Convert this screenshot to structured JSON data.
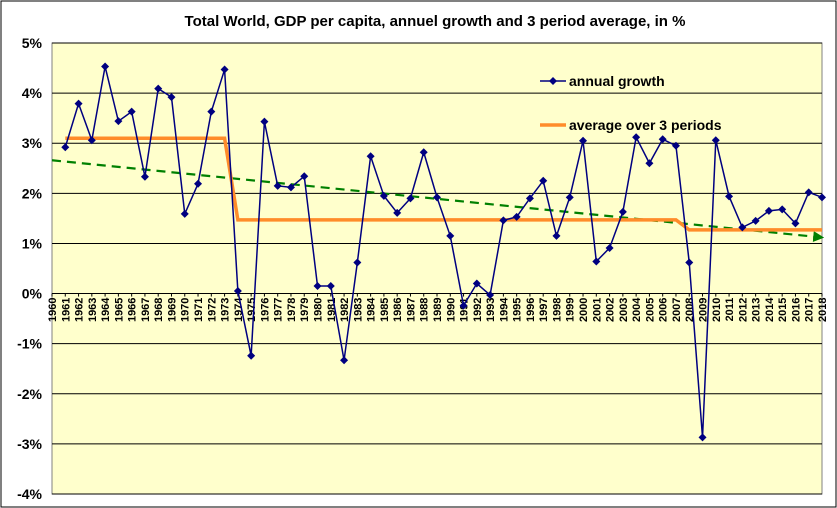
{
  "chart_data": {
    "type": "line",
    "title": "Total World, GDP per capita, annuel growth and 3 period average, in %",
    "xlabel": "",
    "ylabel": "",
    "ylim": [
      -4,
      5
    ],
    "ytick_values": [
      5,
      4,
      3,
      2,
      1,
      0,
      -1,
      -2,
      -3,
      -4
    ],
    "ytick_labels": [
      "5%",
      "4%",
      "3%",
      "2%",
      "1%",
      "0%",
      "-1%",
      "-2%",
      "-3%",
      "-4%"
    ],
    "grid": true,
    "legend_position": "top-right",
    "background_color": "#FFFFCC",
    "categories": [
      "1960",
      "1961",
      "1962",
      "1963",
      "1964",
      "1965",
      "1966",
      "1967",
      "1968",
      "1969",
      "1970",
      "1971",
      "1972",
      "1973",
      "1974",
      "1975",
      "1976",
      "1977",
      "1978",
      "1979",
      "1980",
      "1981",
      "1982",
      "1983",
      "1984",
      "1985",
      "1986",
      "1987",
      "1988",
      "1989",
      "1990",
      "1991",
      "1992",
      "1993",
      "1994",
      "1995",
      "1996",
      "1997",
      "1998",
      "1999",
      "2000",
      "2001",
      "2002",
      "2003",
      "2004",
      "2005",
      "2006",
      "2007",
      "2008",
      "2009",
      "2010",
      "2011",
      "2012",
      "2013",
      "2014",
      "2015",
      "2016",
      "2017",
      "2018"
    ],
    "series": [
      {
        "name": "annual growth",
        "color": "#000080",
        "marker": "diamond",
        "x": [
          "1961",
          "1962",
          "1963",
          "1964",
          "1965",
          "1966",
          "1967",
          "1968",
          "1969",
          "1970",
          "1971",
          "1972",
          "1973",
          "1974",
          "1975",
          "1976",
          "1977",
          "1978",
          "1979",
          "1980",
          "1981",
          "1982",
          "1983",
          "1984",
          "1985",
          "1986",
          "1987",
          "1988",
          "1989",
          "1990",
          "1991",
          "1992",
          "1993",
          "1994",
          "1995",
          "1996",
          "1997",
          "1998",
          "1999",
          "2000",
          "2001",
          "2002",
          "2003",
          "2004",
          "2005",
          "2006",
          "2007",
          "2008",
          "2009",
          "2010",
          "2011",
          "2012",
          "2013",
          "2014",
          "2015",
          "2016",
          "2017",
          "2018"
        ],
        "values": [
          2.92,
          3.79,
          3.06,
          4.53,
          3.44,
          3.63,
          2.33,
          4.09,
          3.92,
          1.59,
          2.19,
          3.63,
          4.47,
          0.05,
          -1.24,
          3.43,
          2.15,
          2.12,
          2.34,
          0.15,
          0.15,
          -1.33,
          0.62,
          2.74,
          1.95,
          1.61,
          1.9,
          2.82,
          1.92,
          1.15,
          -0.24,
          0.2,
          -0.03,
          1.46,
          1.53,
          1.9,
          2.25,
          1.15,
          1.92,
          3.05,
          0.64,
          0.91,
          1.63,
          3.12,
          2.6,
          3.08,
          2.95,
          0.62,
          -2.87,
          3.06,
          1.94,
          1.32,
          1.45,
          1.65,
          1.68,
          1.4,
          2.02,
          1.92
        ]
      },
      {
        "name": "average over 3 periods",
        "color": "#FF8C2A",
        "style": "step",
        "x": [
          "1961",
          "1973",
          "1974",
          "2007",
          "2008",
          "2018"
        ],
        "values": [
          3.1,
          3.1,
          1.47,
          1.47,
          1.27,
          1.27
        ]
      },
      {
        "color": "#008000",
        "style": "dashed",
        "arrow": true,
        "x": [
          "1960",
          "2018"
        ],
        "values": [
          2.66,
          1.12
        ]
      }
    ]
  }
}
